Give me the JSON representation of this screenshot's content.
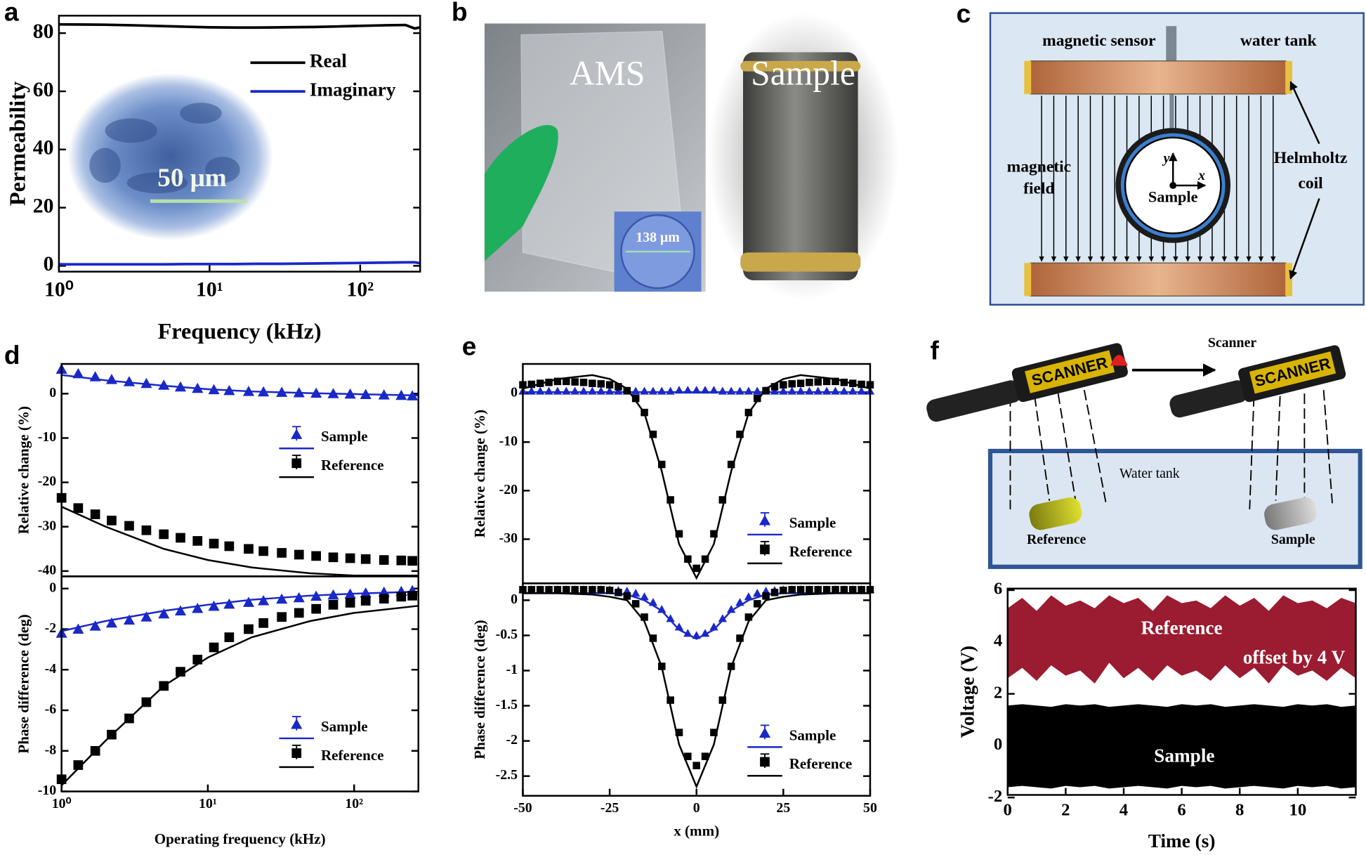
{
  "panel_labels": [
    "a",
    "b",
    "c",
    "d",
    "e",
    "f"
  ],
  "photo": {
    "left_label": "AMS",
    "inset_label": "138 μm",
    "right_label": "Sample"
  },
  "setup_diagram": {
    "sensor": "magnetic sensor",
    "tank": "water tank",
    "field": [
      "magnetic",
      "field"
    ],
    "coil": [
      "Helmholtz",
      "coil"
    ],
    "sample": "Sample",
    "y_axis": "y",
    "x_axis": "x"
  },
  "scanner_diagram": {
    "scanner": "Scanner",
    "brand": "SCANNER",
    "tank": "Water tank",
    "reference": "Reference",
    "sample": "Sample"
  },
  "chart_data": [
    {
      "type": "line",
      "xscale": "log",
      "xlabel": "Frequency (kHz)",
      "ylabel": "Permeability",
      "annotations": [
        "50 μm"
      ],
      "xlim": [
        1,
        250
      ],
      "xticks": [
        {
          "value": 1,
          "label": "10⁰"
        },
        {
          "value": 10,
          "label": "10¹"
        },
        {
          "value": 100,
          "label": "10²"
        }
      ],
      "ylim": [
        -2,
        86
      ],
      "yticks": [
        0,
        20,
        40,
        60,
        80
      ],
      "x": [
        1,
        2,
        3,
        5,
        7,
        10,
        15,
        20,
        30,
        50,
        70,
        100,
        150,
        200,
        230,
        250
      ],
      "series": [
        {
          "name": "Real",
          "color": "#000000",
          "values": [
            83,
            82.9,
            82.7,
            82.4,
            82.2,
            82,
            81.9,
            81.9,
            82,
            82.1,
            82.3,
            82.5,
            82.7,
            82.8,
            81.6,
            82
          ]
        },
        {
          "name": "Imaginary",
          "color": "#1a28c8",
          "values": [
            0.5,
            0.5,
            0.5,
            0.5,
            0.6,
            0.6,
            0.6,
            0.7,
            0.7,
            0.8,
            0.9,
            1,
            1.1,
            1.2,
            1.2,
            0.9
          ]
        }
      ]
    },
    {
      "type": "scatter",
      "xscale": "log",
      "ylabel": "Relative change (%)",
      "xlim": [
        1,
        275
      ],
      "ylim": [
        -41.2,
        6.7
      ],
      "yticks": [
        0,
        -10,
        -20,
        -30,
        -40
      ],
      "x": [
        1,
        1.3,
        1.7,
        2.2,
        2.9,
        3.8,
        5,
        6.5,
        8.5,
        11,
        14,
        19,
        24,
        32,
        42,
        55,
        72,
        94,
        120,
        160,
        210,
        250
      ],
      "fit_x": [
        1,
        2,
        5,
        10,
        20,
        50,
        100,
        275
      ],
      "series": [
        {
          "name": "Sample",
          "color": "#1a28c8",
          "marker": "triangle",
          "values": [
            5.5,
            4.5,
            3.8,
            3.2,
            2.7,
            2.3,
            1.9,
            1.5,
            1.2,
            0.9,
            0.7,
            0.5,
            0.4,
            0.3,
            0.2,
            0.1,
            0,
            -0.1,
            -0.2,
            -0.3,
            -0.4,
            -0.5
          ],
          "fit": [
            4.2,
            3,
            1.8,
            1,
            0.5,
            0.1,
            -0.1,
            -0.4
          ]
        },
        {
          "name": "Reference",
          "color": "#000000",
          "marker": "square",
          "values": [
            -23.5,
            -25.8,
            -27.2,
            -28.6,
            -29.8,
            -30.8,
            -31.7,
            -32.5,
            -33.2,
            -33.8,
            -34.4,
            -35,
            -35.5,
            -35.9,
            -36.3,
            -36.6,
            -36.9,
            -37.1,
            -37.3,
            -37.5,
            -37.6,
            -37.7
          ],
          "fit": [
            -25.5,
            -30,
            -35,
            -37.5,
            -39.2,
            -40.5,
            -41,
            -41
          ]
        }
      ]
    },
    {
      "type": "scatter",
      "xscale": "log",
      "xlabel": "Operating frequency (kHz)",
      "ylabel": "Phase difference (deg)",
      "xlim": [
        1,
        275
      ],
      "xticks": [
        {
          "value": 1,
          "label": "10⁰"
        },
        {
          "value": 10,
          "label": "10¹"
        },
        {
          "value": 100,
          "label": "10²"
        }
      ],
      "ylim": [
        -10,
        0.6
      ],
      "yticks": [
        0,
        -2,
        -4,
        -6,
        -8,
        -10
      ],
      "x": [
        1,
        1.3,
        1.7,
        2.2,
        2.9,
        3.8,
        5,
        6.5,
        8.5,
        11,
        14,
        19,
        24,
        32,
        42,
        55,
        72,
        94,
        120,
        160,
        210,
        250
      ],
      "fit_x": [
        1,
        2,
        5,
        10,
        20,
        50,
        100,
        275
      ],
      "series": [
        {
          "name": "Sample",
          "color": "#1a28c8",
          "marker": "triangle",
          "values": [
            -2.2,
            -2,
            -1.85,
            -1.7,
            -1.55,
            -1.4,
            -1.25,
            -1.1,
            -0.98,
            -0.87,
            -0.77,
            -0.68,
            -0.6,
            -0.52,
            -0.45,
            -0.38,
            -0.32,
            -0.27,
            -0.22,
            -0.18,
            -0.14,
            -0.1
          ],
          "fit": [
            -2.1,
            -1.6,
            -1.1,
            -0.8,
            -0.55,
            -0.35,
            -0.25,
            -0.15
          ]
        },
        {
          "name": "Reference",
          "color": "#000000",
          "marker": "square",
          "values": [
            -9.4,
            -8.7,
            -8,
            -7.2,
            -6.4,
            -5.6,
            -4.8,
            -4.1,
            -3.5,
            -2.9,
            -2.4,
            -2,
            -1.7,
            -1.4,
            -1.2,
            -1,
            -0.8,
            -0.7,
            -0.6,
            -0.5,
            -0.4,
            -0.35
          ],
          "fit": [
            -9.7,
            -7.5,
            -4.8,
            -3.4,
            -2.4,
            -1.6,
            -1.2,
            -0.85
          ]
        }
      ]
    },
    {
      "type": "scatter",
      "ylabel": "Relative change (%)",
      "xlim": [
        -50,
        50
      ],
      "ylim": [
        -39.1,
        6.1
      ],
      "yticks": [
        0,
        -10,
        -20,
        -30
      ],
      "x": [
        -50,
        -47.5,
        -45,
        -42.5,
        -40,
        -37.5,
        -35,
        -32.5,
        -30,
        -27.5,
        -25,
        -22.5,
        -20,
        -17.5,
        -15,
        -12.5,
        -10,
        -7.5,
        -5,
        -2.5,
        0,
        2.5,
        5,
        7.5,
        10,
        12.5,
        15,
        17.5,
        20,
        22.5,
        25,
        27.5,
        30,
        32.5,
        35,
        37.5,
        40,
        42.5,
        45,
        47.5,
        50
      ],
      "fit_x": [
        -50,
        -40,
        -30,
        -25,
        -20,
        -15,
        -10,
        -5,
        0,
        5,
        10,
        15,
        20,
        25,
        30,
        40,
        50
      ],
      "series": [
        {
          "name": "Sample",
          "color": "#1a28c8",
          "marker": "triangle",
          "values": [
            0.5,
            0.5,
            0.5,
            0.5,
            0.5,
            0.5,
            0.5,
            0.5,
            0.5,
            0.5,
            0.5,
            0.5,
            0.5,
            0.5,
            0.5,
            0.5,
            0.5,
            0.5,
            0.7,
            0.7,
            0.7,
            0.7,
            0.7,
            0.5,
            0.5,
            0.5,
            0.5,
            0.5,
            0.5,
            0.5,
            0.5,
            0.5,
            0.5,
            0.5,
            0.5,
            0.5,
            0.5,
            0.5,
            0.5,
            0.5,
            0.5
          ],
          "fit": [
            0.3,
            0.3,
            0.3,
            0.3,
            0.3,
            0.3,
            0.3,
            0.3,
            0.3,
            0.3,
            0.3,
            0.3,
            0.3,
            0.3,
            0.3,
            0.3,
            0.3
          ]
        },
        {
          "name": "Reference",
          "color": "#000000",
          "marker": "square",
          "values": [
            1.8,
            1.9,
            2.1,
            2.3,
            2.5,
            2.5,
            2.4,
            2.3,
            2.1,
            2,
            1.8,
            1.4,
            0.6,
            -1,
            -3.9,
            -8.4,
            -14.6,
            -21.9,
            -28.9,
            -34.1,
            -36,
            -34.1,
            -28.9,
            -21.9,
            -14.6,
            -8.4,
            -3.9,
            -1,
            0.6,
            1.4,
            1.8,
            2,
            2.1,
            2.3,
            2.4,
            2.5,
            2.5,
            2.3,
            2.1,
            1.9,
            1.8
          ],
          "fit": [
            1,
            3,
            3.8,
            3,
            1,
            -4,
            -16,
            -31,
            -38,
            -31,
            -16,
            -4,
            1,
            3,
            3.8,
            3,
            1
          ]
        }
      ]
    },
    {
      "type": "scatter",
      "xlabel": "x (mm)",
      "ylabel": "Phase difference (deg)",
      "xlim": [
        -50,
        50
      ],
      "xticks": [
        -50,
        -25,
        0,
        25,
        50
      ],
      "ylim": [
        -2.78,
        0.24
      ],
      "yticks": [
        0,
        -0.5,
        -1,
        -1.5,
        -2,
        -2.5
      ],
      "x": [
        -50,
        -47.5,
        -45,
        -42.5,
        -40,
        -37.5,
        -35,
        -32.5,
        -30,
        -27.5,
        -25,
        -22.5,
        -20,
        -17.5,
        -15,
        -12.5,
        -10,
        -7.5,
        -5,
        -2.5,
        0,
        2.5,
        5,
        7.5,
        10,
        12.5,
        15,
        17.5,
        20,
        22.5,
        25,
        27.5,
        30,
        32.5,
        35,
        37.5,
        40,
        42.5,
        45,
        47.5,
        50
      ],
      "fit_x": [
        -50,
        -40,
        -30,
        -25,
        -20,
        -15,
        -10,
        -5,
        0,
        5,
        10,
        15,
        20,
        25,
        30,
        40,
        50
      ],
      "series": [
        {
          "name": "Sample",
          "color": "#1a28c8",
          "marker": "triangle",
          "values": [
            0.15,
            0.15,
            0.15,
            0.15,
            0.15,
            0.15,
            0.15,
            0.15,
            0.15,
            0.15,
            0.15,
            0.14,
            0.13,
            0.1,
            0.05,
            -0.03,
            -0.13,
            -0.26,
            -0.38,
            -0.47,
            -0.5,
            -0.47,
            -0.38,
            -0.26,
            -0.13,
            -0.03,
            0.05,
            0.1,
            0.13,
            0.14,
            0.15,
            0.15,
            0.15,
            0.15,
            0.15,
            0.15,
            0.15,
            0.15,
            0.15,
            0.15,
            0.15
          ],
          "fit": [
            0.1,
            0.1,
            0.1,
            0.1,
            0.08,
            0,
            -0.15,
            -0.42,
            -0.55,
            -0.42,
            -0.15,
            0,
            0.08,
            0.1,
            0.1,
            0.1,
            0.1
          ]
        },
        {
          "name": "Reference",
          "color": "#000000",
          "marker": "square",
          "values": [
            0.15,
            0.15,
            0.15,
            0.15,
            0.15,
            0.15,
            0.15,
            0.15,
            0.15,
            0.15,
            0.14,
            0.11,
            0.06,
            -0.05,
            -0.24,
            -0.54,
            -0.94,
            -1.42,
            -1.88,
            -2.22,
            -2.35,
            -2.22,
            -1.88,
            -1.42,
            -0.94,
            -0.54,
            -0.24,
            -0.05,
            0.06,
            0.11,
            0.14,
            0.15,
            0.15,
            0.15,
            0.15,
            0.15,
            0.15,
            0.15,
            0.15,
            0.15,
            0.15
          ],
          "fit": [
            0.1,
            0.1,
            0.08,
            0.05,
            0,
            -0.3,
            -0.95,
            -2.05,
            -2.65,
            -2.05,
            -0.95,
            -0.3,
            0,
            0.05,
            0.08,
            0.1,
            0.1
          ]
        }
      ]
    },
    {
      "type": "range",
      "xlabel": "Time (s)",
      "ylabel": "Voltage (V)",
      "annotations": [
        "offset by 4 V"
      ],
      "xlim": [
        0,
        12
      ],
      "xticks": [
        0,
        2,
        4,
        6,
        8,
        10
      ],
      "ylim": [
        -1.9,
        6.06
      ],
      "yticks": [
        -2,
        0,
        2,
        4,
        6
      ],
      "x": [
        0,
        0.5,
        1,
        1.5,
        2,
        2.5,
        3,
        3.5,
        4,
        4.5,
        5,
        5.5,
        6,
        6.5,
        7,
        7.5,
        8,
        8.5,
        9,
        9.5,
        10,
        10.5,
        11,
        11.5,
        12
      ],
      "series": [
        {
          "name": "Reference",
          "color": "#9b1b30",
          "upper": [
            5.3,
            5.7,
            5.2,
            5.8,
            5.4,
            5.6,
            5.3,
            5.8,
            5.5,
            5.7,
            5.2,
            5.8,
            5.5,
            5.6,
            5.3,
            5.8,
            5.4,
            5.7,
            5.2,
            5.8,
            5.5,
            5.6,
            5.3,
            5.7,
            5.5
          ],
          "lower": [
            2.6,
            3,
            2.5,
            3.1,
            2.7,
            2.9,
            2.4,
            3.2,
            2.6,
            3,
            2.5,
            3.1,
            2.7,
            2.9,
            2.5,
            3.1,
            2.6,
            3,
            2.4,
            3.1,
            2.7,
            2.9,
            2.5,
            3,
            2.6
          ]
        },
        {
          "name": "Sample",
          "color": "#000000",
          "upper": [
            1.55,
            1.6,
            1.55,
            1.5,
            1.6,
            1.55,
            1.6,
            1.5,
            1.55,
            1.6,
            1.55,
            1.5,
            1.6,
            1.55,
            1.6,
            1.5,
            1.55,
            1.6,
            1.55,
            1.5,
            1.6,
            1.55,
            1.6,
            1.5,
            1.55
          ],
          "lower": [
            -1.6,
            -1.55,
            -1.6,
            -1.65,
            -1.55,
            -1.6,
            -1.55,
            -1.65,
            -1.6,
            -1.55,
            -1.6,
            -1.65,
            -1.55,
            -1.6,
            -1.55,
            -1.65,
            -1.6,
            -1.55,
            -1.6,
            -1.65,
            -1.55,
            -1.6,
            -1.55,
            -1.65,
            -1.6
          ]
        }
      ]
    }
  ]
}
